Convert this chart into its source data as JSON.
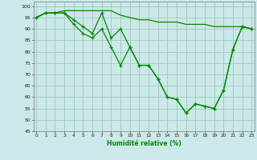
{
  "xlabel": "Humidité relative (%)",
  "bg_color": "#cce8e8",
  "grid_color": "#99ccbb",
  "line_color": "#008800",
  "ylim": [
    45,
    102
  ],
  "xlim": [
    -0.3,
    23.3
  ],
  "yticks": [
    45,
    50,
    55,
    60,
    65,
    70,
    75,
    80,
    85,
    90,
    95,
    100
  ],
  "xticks": [
    0,
    1,
    2,
    3,
    4,
    5,
    6,
    7,
    8,
    9,
    10,
    11,
    12,
    13,
    14,
    15,
    16,
    17,
    18,
    19,
    20,
    21,
    22,
    23
  ],
  "line1": [
    95,
    97,
    97,
    98,
    98,
    98,
    98,
    98,
    98,
    96,
    95,
    94,
    94,
    93,
    93,
    93,
    92,
    92,
    92,
    91,
    91,
    91,
    91,
    90
  ],
  "line2": [
    95,
    97,
    97,
    97,
    94,
    91,
    88,
    97,
    86,
    90,
    82,
    74,
    74,
    68,
    60,
    59,
    53,
    57,
    56,
    55,
    63,
    81,
    91,
    90
  ],
  "line3": [
    95,
    97,
    97,
    97,
    92,
    88,
    86,
    90,
    82,
    74,
    82,
    74,
    74,
    68,
    60,
    59,
    53,
    57,
    56,
    55,
    63,
    81,
    91,
    90
  ]
}
